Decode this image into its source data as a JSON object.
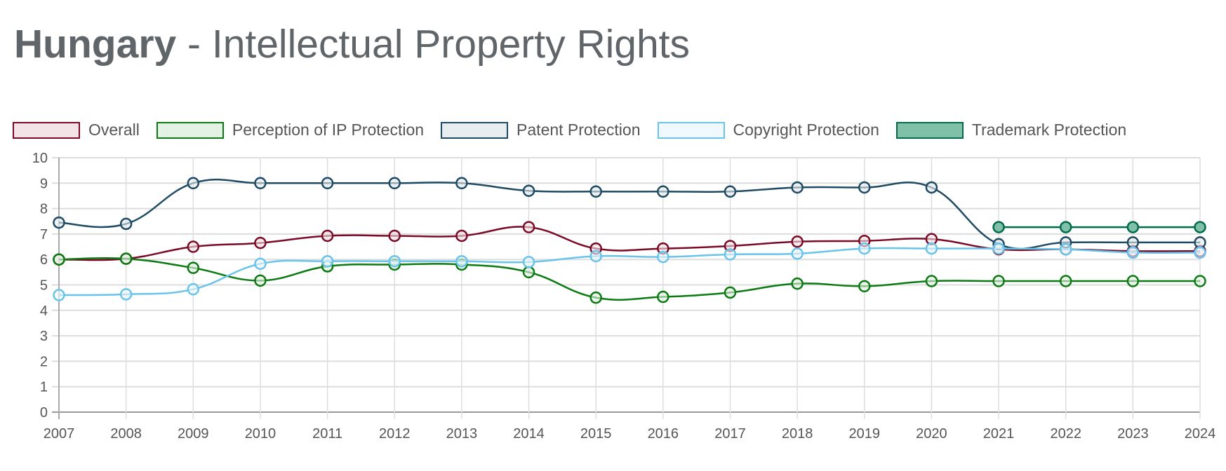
{
  "title": {
    "bold": "Hungary",
    "rest": " - Intellectual Property Rights"
  },
  "chart_data": {
    "type": "line",
    "title": "Hungary - Intellectual Property Rights",
    "xlabel": "",
    "ylabel": "",
    "ylim": [
      0,
      10
    ],
    "yticks": [
      "0",
      "1",
      "2",
      "3",
      "4",
      "5",
      "6",
      "7",
      "8",
      "9",
      "10"
    ],
    "grid": true,
    "legend": "top",
    "categories": [
      "2007",
      "2008",
      "2009",
      "2010",
      "2011",
      "2012",
      "2013",
      "2014",
      "2015",
      "2016",
      "2017",
      "2018",
      "2019",
      "2020",
      "2021",
      "2022",
      "2023",
      "2024"
    ],
    "series": [
      {
        "name": "Overall",
        "color": "#7b0a26",
        "fill": "#f3e3e6",
        "values": [
          6.0,
          6.03,
          6.5,
          6.65,
          6.93,
          6.93,
          6.93,
          7.27,
          6.43,
          6.43,
          6.53,
          6.7,
          6.73,
          6.8,
          6.4,
          6.4,
          6.33,
          6.33
        ]
      },
      {
        "name": "Perception of IP Protection",
        "color": "#0b7a12",
        "fill": "#e4f1e5",
        "values": [
          6.0,
          6.03,
          5.67,
          5.17,
          5.73,
          5.8,
          5.8,
          5.5,
          4.5,
          4.53,
          4.7,
          5.05,
          4.95,
          5.15,
          5.15,
          5.15,
          5.15,
          5.15
        ]
      },
      {
        "name": "Patent Protection",
        "color": "#1f4a63",
        "fill": "#e8edf0",
        "values": [
          7.45,
          7.4,
          9.0,
          9.0,
          9.0,
          9.0,
          9.0,
          8.7,
          8.67,
          8.67,
          8.67,
          8.83,
          8.83,
          8.83,
          6.6,
          6.67,
          6.67,
          6.67
        ]
      },
      {
        "name": "Copyright Protection",
        "color": "#69c3ea",
        "fill": "#eff8fd",
        "values": [
          4.6,
          4.63,
          4.83,
          5.83,
          5.93,
          5.93,
          5.93,
          5.9,
          6.13,
          6.1,
          6.2,
          6.23,
          6.43,
          6.43,
          6.43,
          6.4,
          6.27,
          6.27
        ]
      },
      {
        "name": "Trademark Protection",
        "color": "#006b4a",
        "fill": "#80bfa8",
        "filled_points": true,
        "values": [
          null,
          null,
          null,
          null,
          null,
          null,
          null,
          null,
          null,
          null,
          null,
          null,
          null,
          null,
          7.27,
          7.27,
          7.27,
          7.27
        ]
      }
    ]
  }
}
